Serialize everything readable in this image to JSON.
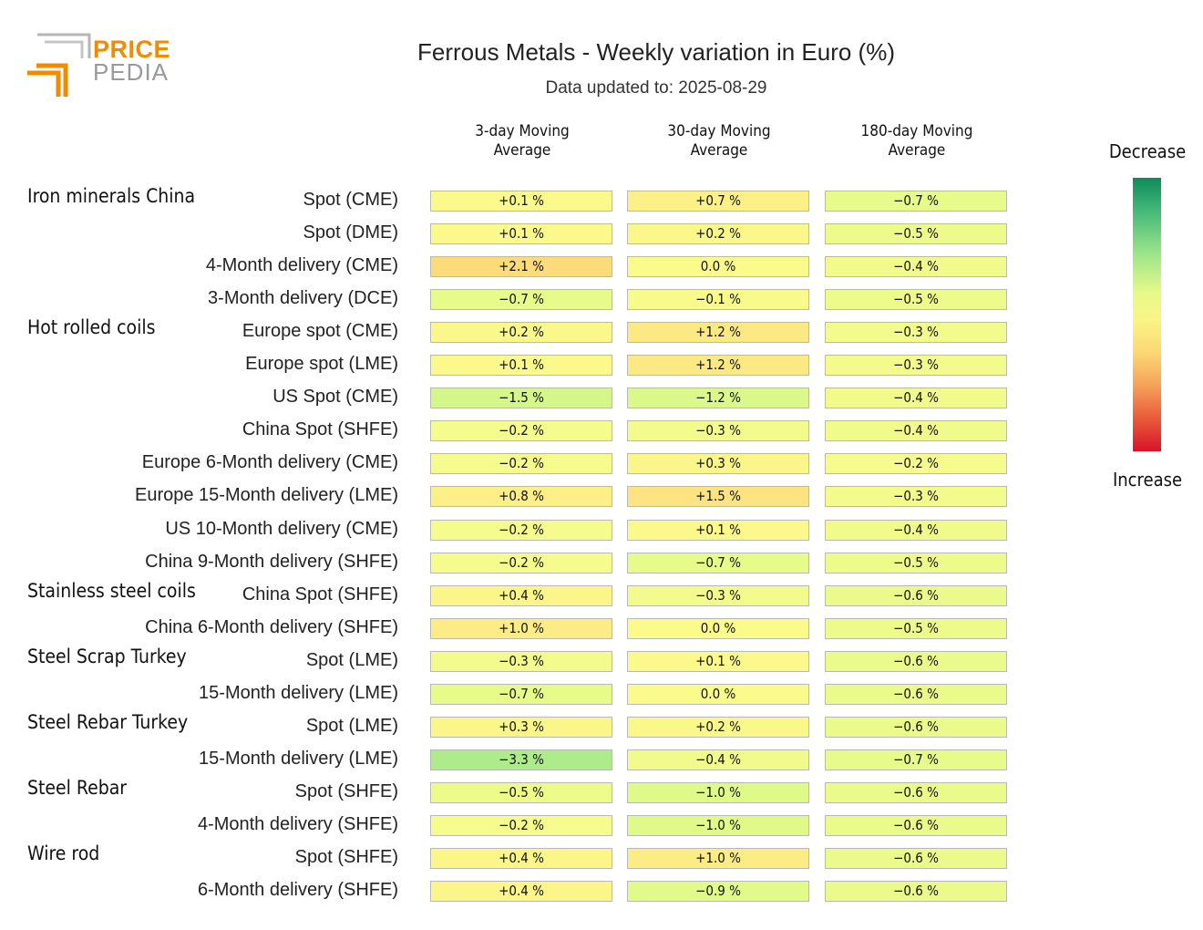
{
  "logo": {
    "line1": "PRICE",
    "line2": "PEDIA",
    "accent": "#f08c00",
    "grey": "#9a9a9a"
  },
  "header": {
    "title": "Ferrous Metals - Weekly variation in Euro (%)",
    "subtitle": "Data updated to: 2025-08-29"
  },
  "legend": {
    "top_label": "Decrease",
    "bottom_label": "Increase"
  },
  "chart_data": {
    "type": "heatmap",
    "title": "Ferrous Metals - Weekly variation in Euro (%)",
    "columns": [
      "3-day Moving\nAverage",
      "30-day Moving\nAverage",
      "180-day Moving\nAverage"
    ],
    "groups": [
      {
        "name": "Iron minerals China",
        "rows": [
          {
            "label": "Spot (CME)",
            "values": [
              0.1,
              0.7,
              -0.7
            ]
          },
          {
            "label": "Spot (DME)",
            "values": [
              0.1,
              0.2,
              -0.5
            ]
          },
          {
            "label": "4-Month delivery (CME)",
            "values": [
              2.1,
              0.0,
              -0.4
            ]
          },
          {
            "label": "3-Month delivery (DCE)",
            "values": [
              -0.7,
              -0.1,
              -0.5
            ]
          }
        ]
      },
      {
        "name": "Hot rolled coils",
        "rows": [
          {
            "label": "Europe spot (CME)",
            "values": [
              0.2,
              1.2,
              -0.3
            ]
          },
          {
            "label": "Europe spot (LME)",
            "values": [
              0.1,
              1.2,
              -0.3
            ]
          },
          {
            "label": "US Spot (CME)",
            "values": [
              -1.5,
              -1.2,
              -0.4
            ]
          },
          {
            "label": "China Spot (SHFE)",
            "values": [
              -0.2,
              -0.3,
              -0.4
            ]
          },
          {
            "label": "Europe 6-Month delivery (CME)",
            "values": [
              -0.2,
              0.3,
              -0.2
            ]
          },
          {
            "label": "Europe 15-Month delivery (LME)",
            "values": [
              0.8,
              1.5,
              -0.3
            ]
          },
          {
            "label": "US 10-Month delivery (CME)",
            "values": [
              -0.2,
              0.1,
              -0.4
            ]
          },
          {
            "label": "China 9-Month delivery (SHFE)",
            "values": [
              -0.2,
              -0.7,
              -0.5
            ]
          }
        ]
      },
      {
        "name": "Stainless steel coils",
        "rows": [
          {
            "label": "China Spot (SHFE)",
            "values": [
              0.4,
              -0.3,
              -0.6
            ]
          },
          {
            "label": "China 6-Month delivery (SHFE)",
            "values": [
              1.0,
              0.0,
              -0.5
            ]
          }
        ]
      },
      {
        "name": "Steel Scrap Turkey",
        "rows": [
          {
            "label": "Spot (LME)",
            "values": [
              -0.3,
              0.1,
              -0.6
            ]
          },
          {
            "label": "15-Month delivery (LME)",
            "values": [
              -0.7,
              0.0,
              -0.6
            ]
          }
        ]
      },
      {
        "name": "Steel Rebar Turkey",
        "rows": [
          {
            "label": "Spot (LME)",
            "values": [
              0.3,
              0.2,
              -0.6
            ]
          },
          {
            "label": "15-Month delivery (LME)",
            "values": [
              -3.3,
              -0.4,
              -0.7
            ]
          }
        ]
      },
      {
        "name": "Steel Rebar",
        "rows": [
          {
            "label": "Spot (SHFE)",
            "values": [
              -0.5,
              -1.0,
              -0.6
            ]
          },
          {
            "label": "4-Month delivery (SHFE)",
            "values": [
              -0.2,
              -1.0,
              -0.6
            ]
          }
        ]
      },
      {
        "name": "Wire rod",
        "rows": [
          {
            "label": "Spot (SHFE)",
            "values": [
              0.4,
              1.0,
              -0.6
            ]
          },
          {
            "label": "6-Month delivery (SHFE)",
            "values": [
              0.4,
              -0.9,
              -0.6
            ]
          }
        ]
      }
    ],
    "unit": "%",
    "color_scale": {
      "decrease": "#0f8a5a",
      "neutral": "#fbfb8c",
      "increase": "#d8142a"
    }
  }
}
